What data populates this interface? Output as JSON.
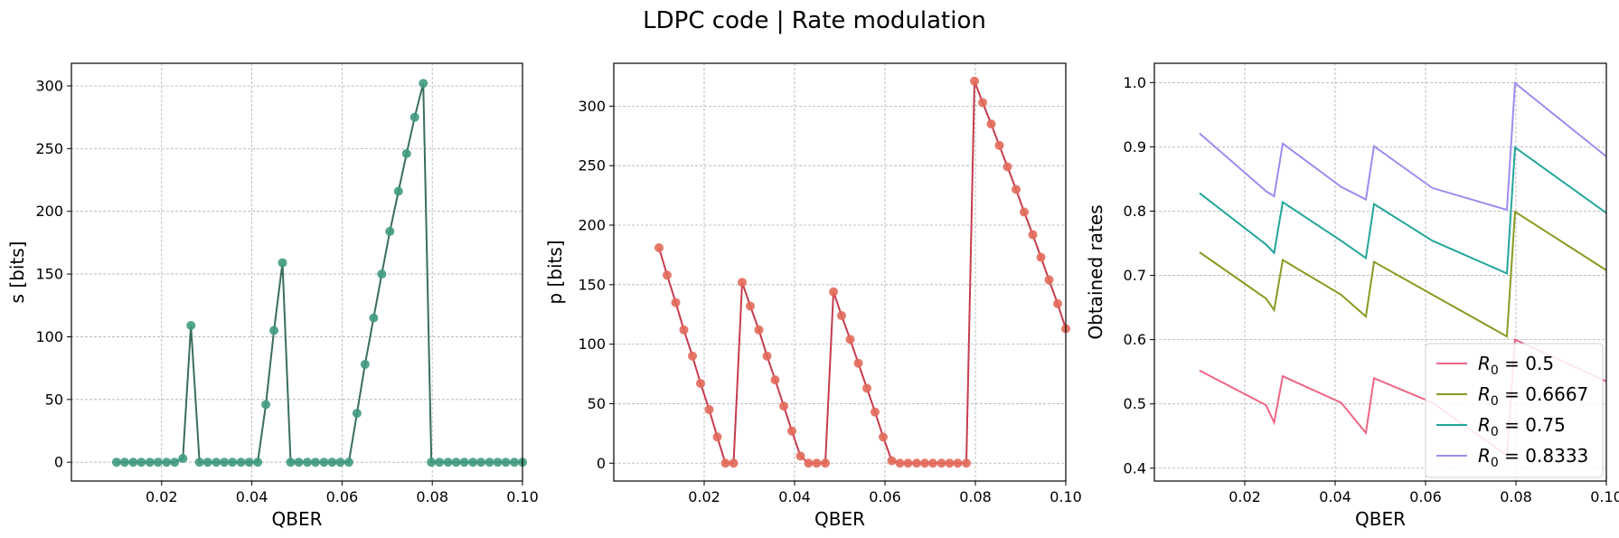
{
  "figure": {
    "title": "LDPC code | Rate modulation"
  },
  "chart_data": [
    {
      "type": "scatter",
      "ylabel": "s [bits]",
      "xlabel": "QBER",
      "xlim": [
        0.0,
        0.1
      ],
      "ylim": [
        -15,
        318
      ],
      "xticks": [
        0.02,
        0.04,
        0.06,
        0.08,
        0.1
      ],
      "xtick_labels": [
        "0.02",
        "0.04",
        "0.06",
        "0.08",
        "0.10"
      ],
      "yticks": [
        0,
        50,
        100,
        150,
        200,
        250,
        300
      ],
      "ytick_labels": [
        "0",
        "50",
        "100",
        "150",
        "200",
        "250",
        "300"
      ],
      "grid": true,
      "line_color": "#3a6e5c",
      "marker_color": "#3f9a7f",
      "points": [
        [
          0.01,
          0
        ],
        [
          0.0118,
          0
        ],
        [
          0.0137,
          0
        ],
        [
          0.0155,
          0
        ],
        [
          0.0174,
          0
        ],
        [
          0.0192,
          0
        ],
        [
          0.0211,
          0
        ],
        [
          0.0229,
          0
        ],
        [
          0.0247,
          3
        ],
        [
          0.0265,
          109
        ],
        [
          0.0284,
          0
        ],
        [
          0.0302,
          0
        ],
        [
          0.0321,
          0
        ],
        [
          0.0339,
          0
        ],
        [
          0.0357,
          0
        ],
        [
          0.0376,
          0
        ],
        [
          0.0394,
          0
        ],
        [
          0.0413,
          0
        ],
        [
          0.0431,
          46
        ],
        [
          0.0449,
          105
        ],
        [
          0.0468,
          159
        ],
        [
          0.0486,
          0
        ],
        [
          0.0504,
          0
        ],
        [
          0.0523,
          0
        ],
        [
          0.0541,
          0
        ],
        [
          0.056,
          0
        ],
        [
          0.0578,
          0
        ],
        [
          0.0596,
          0
        ],
        [
          0.0615,
          0
        ],
        [
          0.0633,
          39
        ],
        [
          0.0651,
          78
        ],
        [
          0.067,
          115
        ],
        [
          0.0688,
          150
        ],
        [
          0.0706,
          184
        ],
        [
          0.0725,
          216
        ],
        [
          0.0743,
          246
        ],
        [
          0.0761,
          275
        ],
        [
          0.078,
          302
        ],
        [
          0.0798,
          0
        ],
        [
          0.0816,
          0
        ],
        [
          0.0835,
          0
        ],
        [
          0.0853,
          0
        ],
        [
          0.0871,
          0
        ],
        [
          0.089,
          0
        ],
        [
          0.0908,
          0
        ],
        [
          0.0927,
          0
        ],
        [
          0.0945,
          0
        ],
        [
          0.0963,
          0
        ],
        [
          0.0982,
          0
        ],
        [
          0.1,
          0
        ]
      ]
    },
    {
      "type": "scatter",
      "ylabel": "p [bits]",
      "xlabel": "QBER",
      "xlim": [
        0.0,
        0.1
      ],
      "ylim": [
        -15,
        336
      ],
      "xticks": [
        0.02,
        0.04,
        0.06,
        0.08,
        0.1
      ],
      "xtick_labels": [
        "0.02",
        "0.04",
        "0.06",
        "0.08",
        "0.10"
      ],
      "yticks": [
        0,
        50,
        100,
        150,
        200,
        250,
        300
      ],
      "ytick_labels": [
        "0",
        "50",
        "100",
        "150",
        "200",
        "250",
        "300"
      ],
      "grid": true,
      "line_color": "#c73b4e",
      "marker_color": "#e26a5a",
      "points": [
        [
          0.01,
          181
        ],
        [
          0.0118,
          158
        ],
        [
          0.0137,
          135
        ],
        [
          0.0155,
          112
        ],
        [
          0.0174,
          90
        ],
        [
          0.0192,
          67
        ],
        [
          0.0211,
          45
        ],
        [
          0.0229,
          22
        ],
        [
          0.0247,
          0
        ],
        [
          0.0265,
          0
        ],
        [
          0.0284,
          152
        ],
        [
          0.0302,
          132
        ],
        [
          0.0321,
          112
        ],
        [
          0.0339,
          90
        ],
        [
          0.0357,
          70
        ],
        [
          0.0376,
          48
        ],
        [
          0.0394,
          27
        ],
        [
          0.0413,
          6
        ],
        [
          0.0431,
          0
        ],
        [
          0.0449,
          0
        ],
        [
          0.0468,
          0
        ],
        [
          0.0486,
          144
        ],
        [
          0.0504,
          124
        ],
        [
          0.0523,
          104
        ],
        [
          0.0541,
          84
        ],
        [
          0.056,
          63
        ],
        [
          0.0578,
          43
        ],
        [
          0.0596,
          22
        ],
        [
          0.0615,
          2
        ],
        [
          0.0633,
          0
        ],
        [
          0.0651,
          0
        ],
        [
          0.067,
          0
        ],
        [
          0.0688,
          0
        ],
        [
          0.0706,
          0
        ],
        [
          0.0725,
          0
        ],
        [
          0.0743,
          0
        ],
        [
          0.0761,
          0
        ],
        [
          0.078,
          0
        ],
        [
          0.0798,
          321
        ],
        [
          0.0816,
          303
        ],
        [
          0.0835,
          285
        ],
        [
          0.0853,
          267
        ],
        [
          0.0871,
          249
        ],
        [
          0.089,
          230
        ],
        [
          0.0908,
          211
        ],
        [
          0.0927,
          192
        ],
        [
          0.0945,
          173
        ],
        [
          0.0963,
          154
        ],
        [
          0.0982,
          134
        ],
        [
          0.1,
          113
        ]
      ]
    },
    {
      "type": "line",
      "ylabel": "Obtained rates",
      "xlabel": "QBER",
      "xlim": [
        0.0,
        0.1
      ],
      "ylim": [
        0.38,
        1.03
      ],
      "xticks": [
        0.02,
        0.04,
        0.06,
        0.08,
        0.1
      ],
      "xtick_labels": [
        "0.02",
        "0.04",
        "0.06",
        "0.08",
        "0.10"
      ],
      "yticks": [
        0.4,
        0.5,
        0.6,
        0.7,
        0.8,
        0.9,
        1.0
      ],
      "ytick_labels": [
        "0.4",
        "0.5",
        "0.6",
        "0.7",
        "0.8",
        "0.9",
        "1.0"
      ],
      "grid": true,
      "legend_position": "lower-right",
      "series": [
        {
          "name_prefix": "R",
          "name_sub": "0",
          "name_suffix": " = 0.5",
          "color": "#ed6684",
          "points": [
            [
              0.01,
              0.552
            ],
            [
              0.0247,
              0.498
            ],
            [
              0.0265,
              0.471
            ],
            [
              0.0284,
              0.543
            ],
            [
              0.0413,
              0.502
            ],
            [
              0.0468,
              0.455
            ],
            [
              0.0486,
              0.54
            ],
            [
              0.0615,
              0.502
            ],
            [
              0.078,
              0.42
            ],
            [
              0.0798,
              0.6
            ],
            [
              0.1,
              0.535
            ]
          ]
        },
        {
          "name_prefix": "R",
          "name_sub": "0",
          "name_suffix": " = 0.6667",
          "color": "#8a9a22",
          "points": [
            [
              0.01,
              0.736
            ],
            [
              0.0247,
              0.664
            ],
            [
              0.0265,
              0.646
            ],
            [
              0.0284,
              0.724
            ],
            [
              0.0413,
              0.67
            ],
            [
              0.0468,
              0.636
            ],
            [
              0.0486,
              0.721
            ],
            [
              0.0615,
              0.67
            ],
            [
              0.078,
              0.605
            ],
            [
              0.0798,
              0.799
            ],
            [
              0.1,
              0.708
            ]
          ]
        },
        {
          "name_prefix": "R",
          "name_sub": "0",
          "name_suffix": " = 0.75",
          "color": "#22a69a",
          "points": [
            [
              0.01,
              0.828
            ],
            [
              0.0247,
              0.748
            ],
            [
              0.0265,
              0.735
            ],
            [
              0.0284,
              0.814
            ],
            [
              0.0413,
              0.754
            ],
            [
              0.0468,
              0.727
            ],
            [
              0.0486,
              0.811
            ],
            [
              0.0615,
              0.754
            ],
            [
              0.078,
              0.703
            ],
            [
              0.0798,
              0.899
            ],
            [
              0.1,
              0.797
            ]
          ]
        },
        {
          "name_prefix": "R",
          "name_sub": "0",
          "name_suffix": " = 0.8333",
          "color": "#9b8df0",
          "points": [
            [
              0.01,
              0.921
            ],
            [
              0.0247,
              0.831
            ],
            [
              0.0265,
              0.823
            ],
            [
              0.0284,
              0.905
            ],
            [
              0.0413,
              0.838
            ],
            [
              0.0468,
              0.818
            ],
            [
              0.0486,
              0.901
            ],
            [
              0.0615,
              0.836
            ],
            [
              0.078,
              0.802
            ],
            [
              0.0798,
              0.999
            ],
            [
              0.1,
              0.885
            ]
          ]
        }
      ]
    }
  ]
}
